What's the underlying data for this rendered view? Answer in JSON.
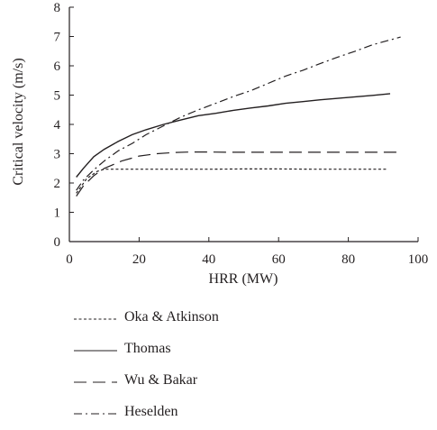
{
  "chart_data": {
    "type": "line",
    "xlabel": "HRR (MW)",
    "ylabel": "Critical velocity (m/s)",
    "xlim": [
      0,
      100
    ],
    "ylim": [
      0,
      8
    ],
    "xticks": [
      0,
      20,
      40,
      60,
      80,
      100
    ],
    "yticks": [
      0,
      1,
      2,
      3,
      4,
      5,
      6,
      7,
      8
    ],
    "grid": false,
    "legend_position": "below",
    "series": [
      {
        "name": "Oka & Atkinson",
        "dash": "short-dash",
        "x": [
          2,
          5,
          8,
          10,
          15,
          20,
          30,
          40,
          50,
          60,
          70,
          80,
          91
        ],
        "y": [
          1.65,
          2.15,
          2.4,
          2.47,
          2.47,
          2.47,
          2.47,
          2.47,
          2.48,
          2.48,
          2.47,
          2.47,
          2.47
        ]
      },
      {
        "name": "Thomas",
        "dash": "solid",
        "x": [
          2,
          4,
          7,
          10,
          14,
          18,
          22,
          27,
          32,
          37,
          42,
          47,
          52,
          57,
          62,
          67,
          72,
          77,
          82,
          87,
          92
        ],
        "y": [
          2.2,
          2.5,
          2.9,
          3.15,
          3.42,
          3.65,
          3.82,
          4.0,
          4.15,
          4.3,
          4.38,
          4.48,
          4.56,
          4.63,
          4.72,
          4.78,
          4.84,
          4.89,
          4.94,
          4.99,
          5.05
        ]
      },
      {
        "name": "Wu & Bakar",
        "dash": "long-dash",
        "x": [
          2,
          4,
          7,
          10,
          15,
          20,
          25,
          30,
          35,
          40,
          45,
          50,
          60,
          70,
          80,
          95
        ],
        "y": [
          1.55,
          1.9,
          2.25,
          2.5,
          2.75,
          2.92,
          3.0,
          3.04,
          3.06,
          3.06,
          3.05,
          3.05,
          3.05,
          3.05,
          3.05,
          3.05
        ]
      },
      {
        "name": "Heselden",
        "dash": "dash-dot",
        "x": [
          2,
          4,
          7,
          10,
          14,
          18,
          22,
          27,
          32,
          37,
          42,
          47,
          52,
          57,
          62,
          67,
          72,
          77,
          82,
          87,
          95
        ],
        "y": [
          1.75,
          2.1,
          2.45,
          2.75,
          3.1,
          3.35,
          3.65,
          3.95,
          4.25,
          4.5,
          4.72,
          4.95,
          5.15,
          5.4,
          5.65,
          5.85,
          6.08,
          6.3,
          6.5,
          6.72,
          6.98
        ]
      }
    ]
  }
}
